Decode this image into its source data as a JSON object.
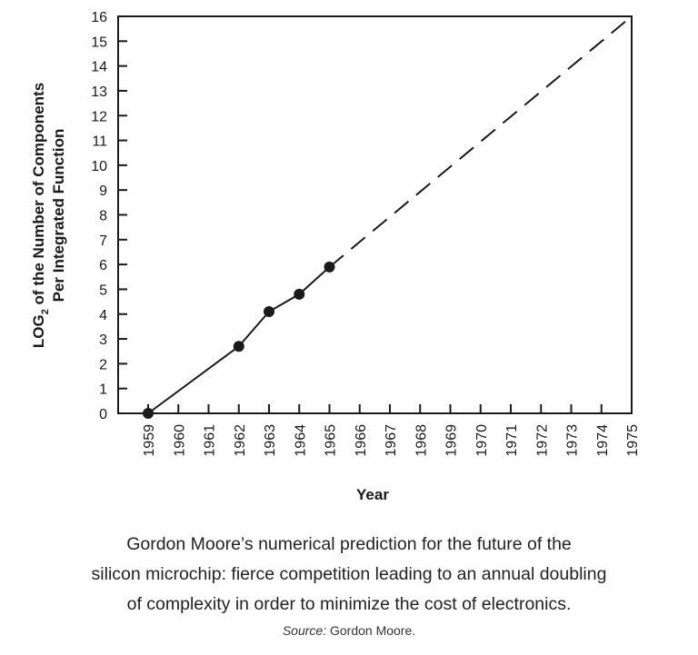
{
  "chart_data": {
    "type": "line",
    "xlabel": "Year",
    "ylabel_line1": "LOG",
    "ylabel_sub": "2",
    "ylabel_line1_rest": " of the Number of Components",
    "ylabel_line2": "Per Integrated Function",
    "xlim": [
      1959,
      1975
    ],
    "ylim": [
      0,
      16
    ],
    "x_ticks": [
      "1959",
      "1960",
      "1961",
      "1962",
      "1963",
      "1964",
      "1965",
      "1966",
      "1967",
      "1968",
      "1969",
      "1970",
      "1971",
      "1972",
      "1973",
      "1974",
      "1975"
    ],
    "y_ticks": [
      "0",
      "1",
      "2",
      "3",
      "4",
      "5",
      "6",
      "7",
      "8",
      "9",
      "10",
      "11",
      "12",
      "13",
      "14",
      "15",
      "16"
    ],
    "series": [
      {
        "style": "solid-with-markers",
        "x": [
          1959,
          1962,
          1963,
          1964,
          1965
        ],
        "y": [
          0,
          2.7,
          4.1,
          4.8,
          5.9
        ]
      },
      {
        "style": "dashed-extrapolation",
        "x": [
          1965,
          1975
        ],
        "y": [
          5.9,
          16
        ]
      }
    ],
    "grid": false,
    "legend": "none"
  },
  "caption": {
    "line1": "Gordon Moore’s numerical prediction for the future of the",
    "line2": "silicon microchip: fierce competition leading to an annual doubling",
    "line3": "of complexity in order to minimize the cost of electronics."
  },
  "source": {
    "label": "Source:",
    "text": " Gordon Moore."
  }
}
